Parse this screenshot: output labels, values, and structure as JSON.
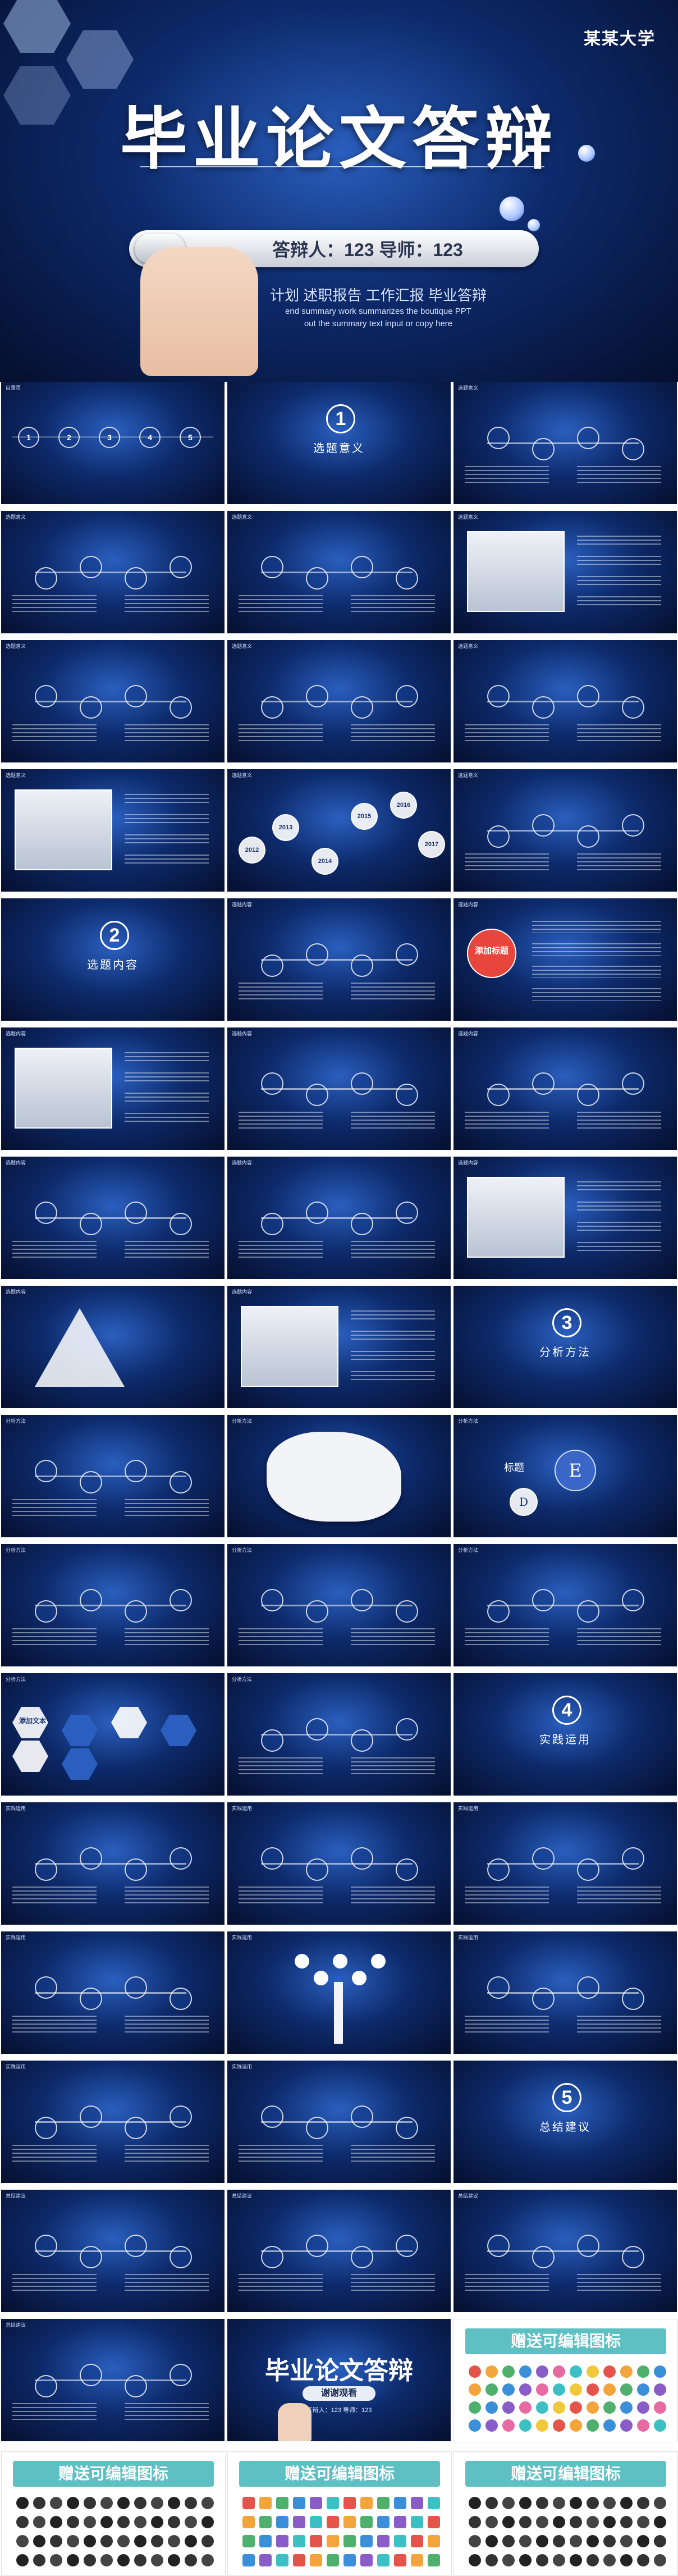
{
  "cover": {
    "university": "某某大学",
    "title": "毕业论文答辩",
    "presenter_line": "答辩人：123   导师：123",
    "subtitle_cn": "计划 述职报告  工作汇报 毕业答辩",
    "subtitle_en_1": "end summary work summarizes the boutique PPT",
    "subtitle_en_2": "out the summary text input or copy here"
  },
  "sections": [
    {
      "number": "1",
      "title": "选题意义"
    },
    {
      "number": "2",
      "title": "选题内容"
    },
    {
      "number": "3",
      "title": "分析方法"
    },
    {
      "number": "4",
      "title": "实践运用"
    },
    {
      "number": "5",
      "title": "总结建议"
    }
  ],
  "labels": {
    "toc": "目录页",
    "s1": "选题意义",
    "s2": "选题内容",
    "s3": "分析方法",
    "s4": "实践运用",
    "s5": "总结建议",
    "add_title": "添加标题",
    "add_text": "添加文本",
    "headline": "标题",
    "e_letter": "E",
    "d_letter": "D"
  },
  "years": [
    "2012",
    "2013",
    "2014",
    "2015",
    "2016",
    "2017"
  ],
  "ending": {
    "title": "毕业论文答辩",
    "thanks": "谢谢观看",
    "presenter_line": "答辩人：123  导师：123"
  },
  "icon_sheet_title": "赠送可编辑图标",
  "colors": {
    "space_dark": "#050f2e",
    "space_mid": "#0d2a6b",
    "accent_blue": "#2a5fbf",
    "teal_band": "#5fc0c4"
  }
}
